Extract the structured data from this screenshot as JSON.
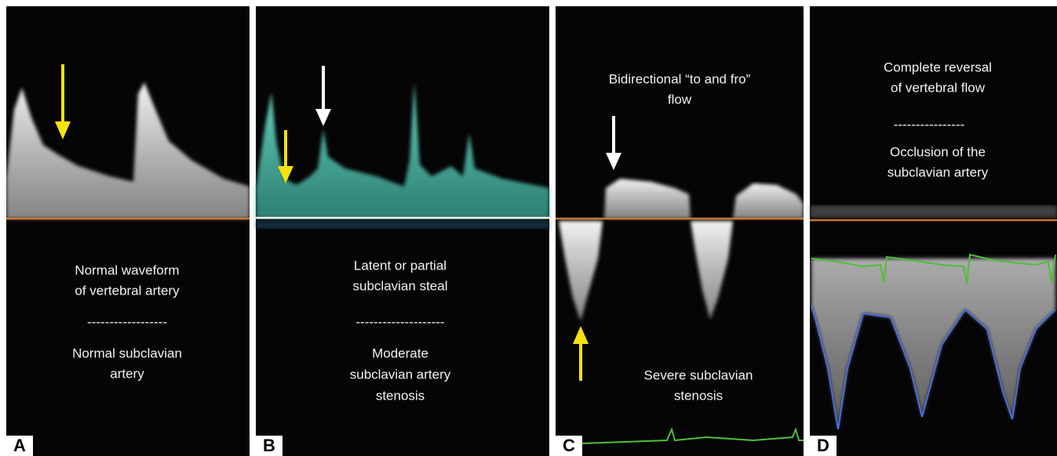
{
  "panels": [
    {
      "label": "A",
      "captions": [
        "Normal waveform",
        "of vertebral artery",
        "------------------",
        "Normal subclavian",
        "artery"
      ]
    },
    {
      "label": "B",
      "captions": [
        "Latent or partial",
        "subclavian steal",
        "--------------------",
        "Moderate",
        "subclavian artery",
        "stenosis"
      ]
    },
    {
      "label": "C",
      "captions": [
        "Bidirectional “to and fro”",
        "flow",
        "Severe subclavian",
        "stenosis"
      ]
    },
    {
      "label": "D",
      "captions": [
        "Complete reversal",
        "of vertebral flow",
        "----------------",
        "Occlusion of the",
        "subclavian artery"
      ]
    }
  ]
}
